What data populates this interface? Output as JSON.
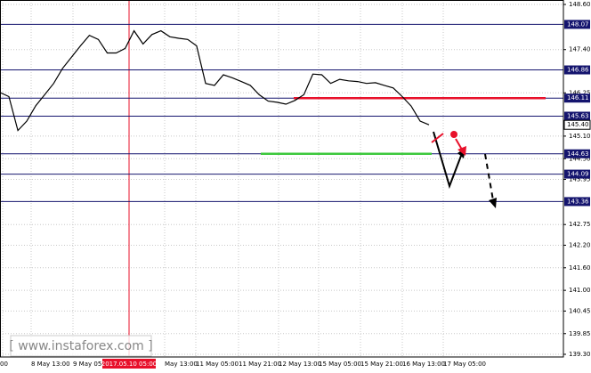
{
  "chart_data": {
    "type": "line",
    "values": [
      146.26,
      146.15,
      145.25,
      145.5,
      145.91,
      146.2,
      146.5,
      146.9,
      147.2,
      147.5,
      147.78,
      147.67,
      147.31,
      147.31,
      147.43,
      147.9,
      147.55,
      147.8,
      147.9,
      147.74,
      147.7,
      147.67,
      147.5,
      146.5,
      146.45,
      146.73,
      146.65,
      146.55,
      146.45,
      146.2,
      146.03,
      146.0,
      145.95,
      146.05,
      146.2,
      146.75,
      146.73,
      146.5,
      146.61,
      146.57,
      146.55,
      146.5,
      146.52,
      146.45,
      146.38,
      146.15,
      145.9,
      145.5,
      145.4
    ],
    "color": "#000000",
    "ylim": [
      139.3,
      148.6
    ],
    "yticks": [
      {
        "value": 148.6,
        "label": "148.60"
      },
      {
        "value": 147.4,
        "label": "147.40"
      },
      {
        "value": 146.25,
        "label": "146.25"
      },
      {
        "value": 145.1,
        "label": "145.10"
      },
      {
        "value": 144.5,
        "label": "144.50"
      },
      {
        "value": 143.95,
        "label": "143.95"
      },
      {
        "value": 142.75,
        "label": "142.75"
      },
      {
        "value": 142.2,
        "label": "142.20"
      },
      {
        "value": 141.6,
        "label": "141.60"
      },
      {
        "value": 141.0,
        "label": "141.00"
      },
      {
        "value": 140.45,
        "label": "140.45"
      },
      {
        "value": 139.85,
        "label": "139.85"
      },
      {
        "value": 139.3,
        "label": "139.30"
      }
    ],
    "grid": true,
    "x_labels": [
      "00",
      "8 May 13:00",
      "9 May 05:00",
      "2017.05.10 05:00",
      "May 13:00",
      "11 May 05:00",
      "11 May 21:00",
      "12 May 13:00",
      "15 May 05:00",
      "15 May 21:00",
      "16 May 13:00",
      "17 May 05:00"
    ],
    "levels": [
      148.07,
      146.86,
      146.11,
      145.63,
      144.63,
      144.09,
      143.36
    ],
    "level_color": "#14146e",
    "current_price": {
      "value": 145.4,
      "label": "145.40"
    },
    "resistance": 146.11,
    "resistance_color": "#e8102a",
    "support": 144.63,
    "support_color": "#3cc83c",
    "watermark": "[ www.instaforex.com ]"
  }
}
